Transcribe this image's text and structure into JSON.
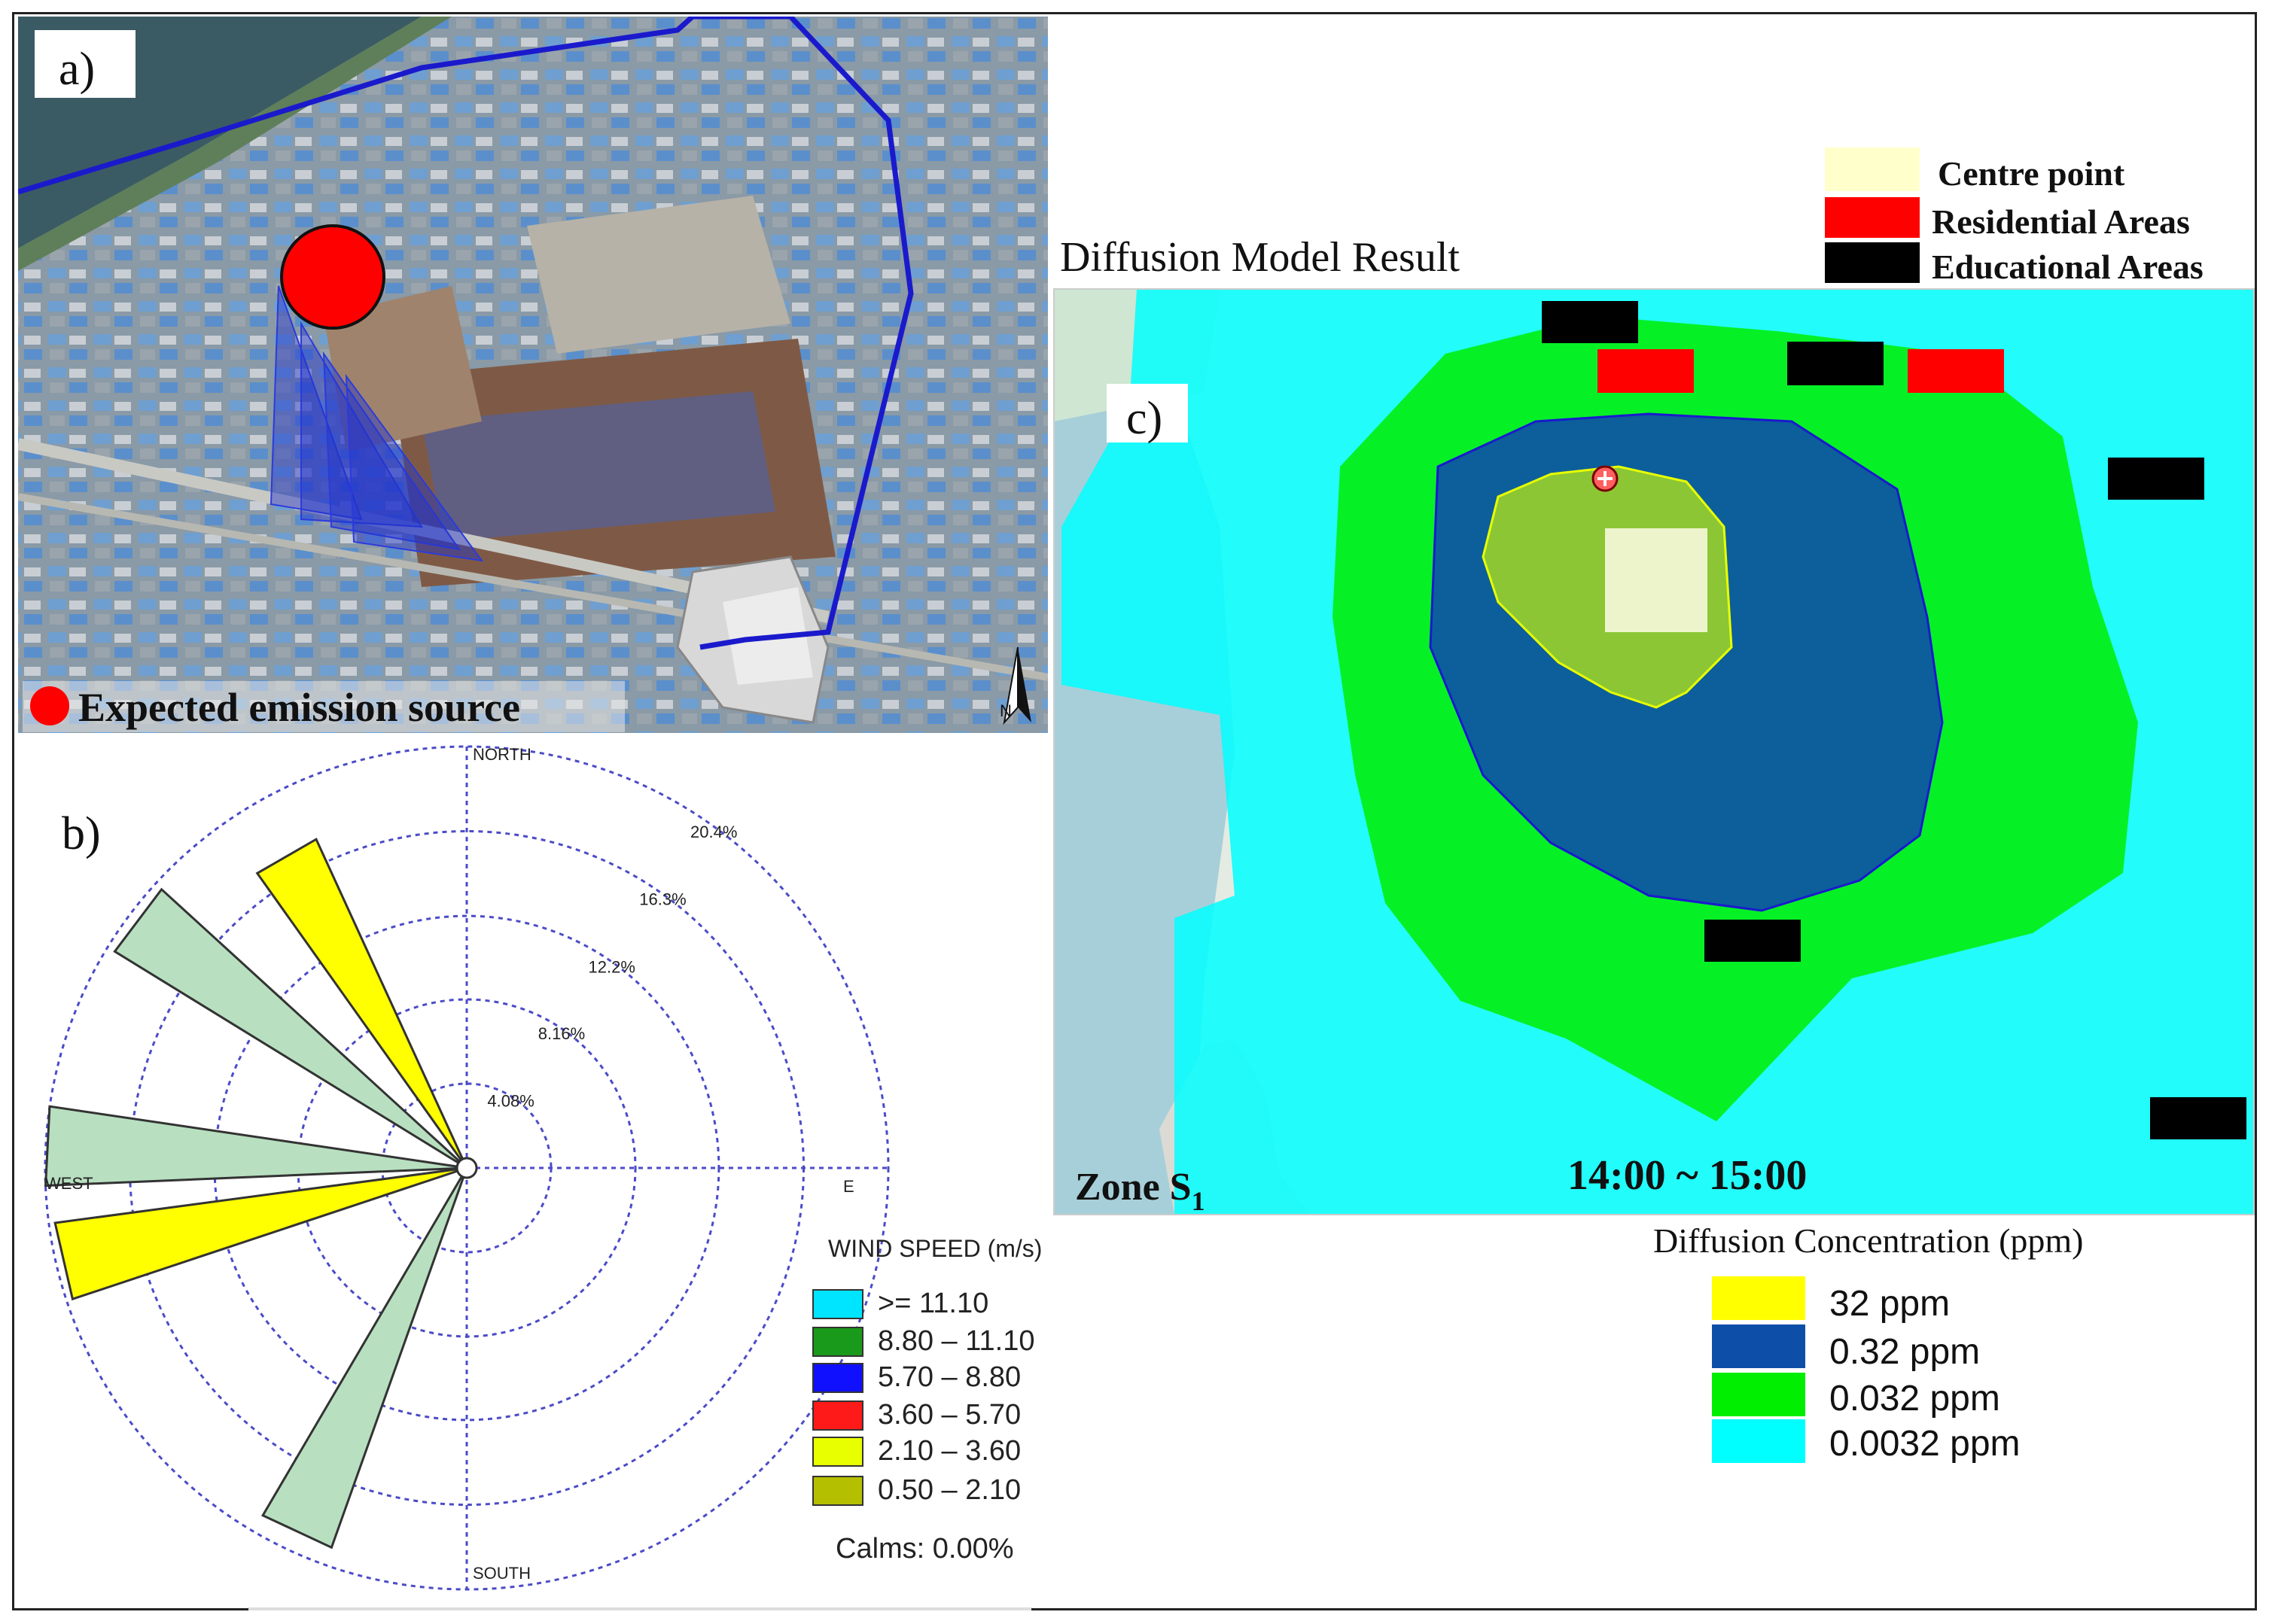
{
  "panel_a": {
    "label": "a)",
    "legend_text": "Expected emission source",
    "source_color": "#ff0000",
    "compass_letter": "N"
  },
  "panel_b": {
    "label": "b)",
    "directions": {
      "north": "NORTH",
      "south": "SOUTH",
      "west": "WEST",
      "east": "E"
    },
    "ring_labels": [
      "4.08%",
      "8.16%",
      "12.2%",
      "16.3%",
      "20.4%"
    ],
    "legend_title": "WIND SPEED (m/s)",
    "legend_items": [
      {
        "label": ">= 11.10",
        "color": "#00e5ff"
      },
      {
        "label": "8.80 – 11.10",
        "color": "#1a9a1a"
      },
      {
        "label": "5.70 – 8.80",
        "color": "#1010ff"
      },
      {
        "label": "3.60 – 5.70",
        "color": "#ff1a1a"
      },
      {
        "label": "2.10 – 3.60",
        "color": "#e8ff00"
      },
      {
        "label": "0.50 – 2.10",
        "color": "#b4bf00"
      }
    ],
    "calms": "Calms: 0.00%",
    "chart_data": {
      "type": "wind-rose",
      "ring_percent": [
        4.08,
        8.16,
        12.2,
        16.3,
        20.4
      ],
      "petals": [
        {
          "direction_deg": 330,
          "length_percent": 17.5,
          "color": "#ffff00"
        },
        {
          "direction_deg": 307,
          "length_percent": 20.0,
          "color": "#b8e0c0"
        },
        {
          "direction_deg": 273,
          "length_percent": 20.4,
          "color": "#b8e0c0"
        },
        {
          "direction_deg": 257,
          "length_percent": 20.1,
          "color": "#ffff00"
        },
        {
          "direction_deg": 205,
          "length_percent": 19.5,
          "color": "#b8e0c0"
        }
      ]
    }
  },
  "panel_c": {
    "label": "c)",
    "title": "Diffusion Model Result",
    "zone_label_main": "Zone S",
    "zone_label_sub": "1",
    "time_label": "14:00 ~ 15:00",
    "area_legend": [
      {
        "label": "Centre point",
        "color": "#ffffcc"
      },
      {
        "label": "Residential Areas",
        "color": "#ff0000"
      },
      {
        "label": "Educational Areas",
        "color": "#000000"
      }
    ],
    "conc_title": "Diffusion Concentration (ppm)",
    "conc_legend": [
      {
        "label": "32 ppm",
        "color": "#ffff00"
      },
      {
        "label": "0.32 ppm",
        "color": "#0d4fa8"
      },
      {
        "label": "0.032 ppm",
        "color": "#00ee00"
      },
      {
        "label": "0.0032 ppm",
        "color": "#00ffff"
      }
    ]
  }
}
